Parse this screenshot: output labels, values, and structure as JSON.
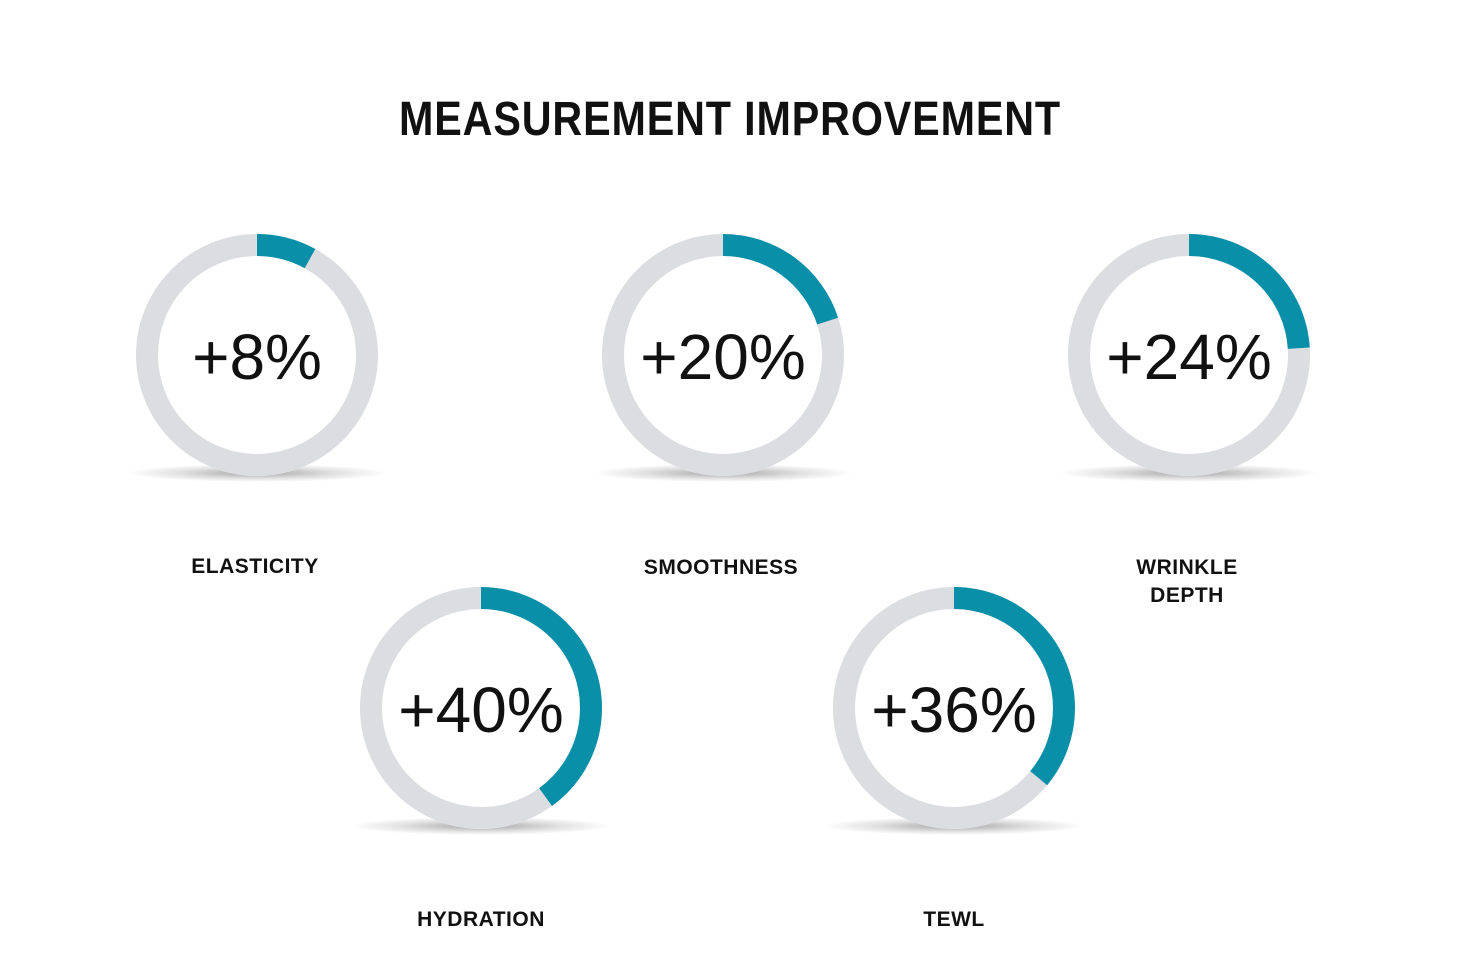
{
  "title": "MEASUREMENT IMPROVEMENT",
  "chart_data": {
    "type": "donut",
    "title": "MEASUREMENT IMPROVEMENT",
    "unit": "%",
    "items": [
      {
        "label": "ELASTICITY",
        "value": 8,
        "display": "+8%"
      },
      {
        "label": "SMOOTHNESS",
        "value": 20,
        "display": "+20%"
      },
      {
        "label": "WRINKLE DEPTH",
        "value": 24,
        "display": "+24%"
      },
      {
        "label": "HYDRATION",
        "value": 40,
        "display": "+40%"
      },
      {
        "label": "TEWL",
        "value": 36,
        "display": "+36%"
      }
    ],
    "range": [
      0,
      100
    ]
  },
  "colors": {
    "accent": "#0A8FA8",
    "track": "#DCDDE1",
    "text": "#111111"
  }
}
